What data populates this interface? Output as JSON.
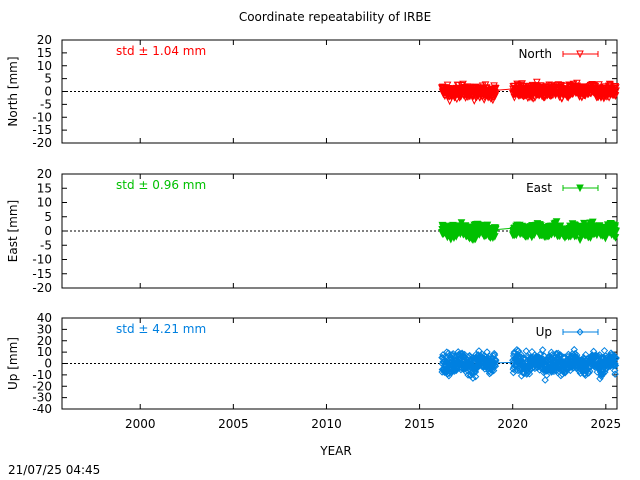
{
  "title": "Coordinate repeatability of IRBE",
  "timestamp": "21/07/25 04:45",
  "chart_data": [
    {
      "type": "scatter",
      "name": "north",
      "ylabel": "North [mm]",
      "ylim": [
        -20,
        20
      ],
      "yticks": [
        -20,
        -15,
        -10,
        -5,
        0,
        5,
        10,
        15,
        20
      ],
      "xlim": [
        1995.8,
        2025.6
      ],
      "xticks": [
        2000,
        2005,
        2010,
        2015,
        2020,
        2025
      ],
      "xlabel": "YEAR",
      "std_label": "std ± 1.04 mm",
      "legend": "North",
      "legend_position": "top-right",
      "color": "#ff0000",
      "marker": "triangle-down-open",
      "zero_line": true,
      "data_range": [
        2016.2,
        2025.55
      ],
      "gap": [
        2019.1,
        2020.0
      ],
      "spread": 2.2
    },
    {
      "type": "scatter",
      "name": "east",
      "ylabel": "East [mm]",
      "ylim": [
        -20,
        20
      ],
      "yticks": [
        -20,
        -15,
        -10,
        -5,
        0,
        5,
        10,
        15,
        20
      ],
      "xlim": [
        1995.8,
        2025.6
      ],
      "xticks": [
        2000,
        2005,
        2010,
        2015,
        2020,
        2025
      ],
      "xlabel": "YEAR",
      "std_label": "std ± 0.96 mm",
      "legend": "East",
      "legend_position": "top-right",
      "color": "#00c000",
      "marker": "triangle-down-filled",
      "zero_line": true,
      "data_range": [
        2016.2,
        2025.55
      ],
      "gap": [
        2019.1,
        2020.0
      ],
      "spread": 2.0
    },
    {
      "type": "scatter",
      "name": "up",
      "ylabel": "Up [mm]",
      "ylim": [
        -40,
        40
      ],
      "yticks": [
        -40,
        -30,
        -20,
        -10,
        0,
        10,
        20,
        30,
        40
      ],
      "xlim": [
        1995.8,
        2025.6
      ],
      "xticks": [
        2000,
        2005,
        2010,
        2015,
        2020,
        2025
      ],
      "xlabel": "YEAR",
      "std_label": "std ± 4.21 mm",
      "legend": "Up",
      "legend_position": "top-right",
      "color": "#0080e0",
      "marker": "diamond-open",
      "zero_line": true,
      "data_range": [
        2016.2,
        2025.55
      ],
      "gap": [
        2019.1,
        2020.0
      ],
      "spread": 8.5
    }
  ]
}
